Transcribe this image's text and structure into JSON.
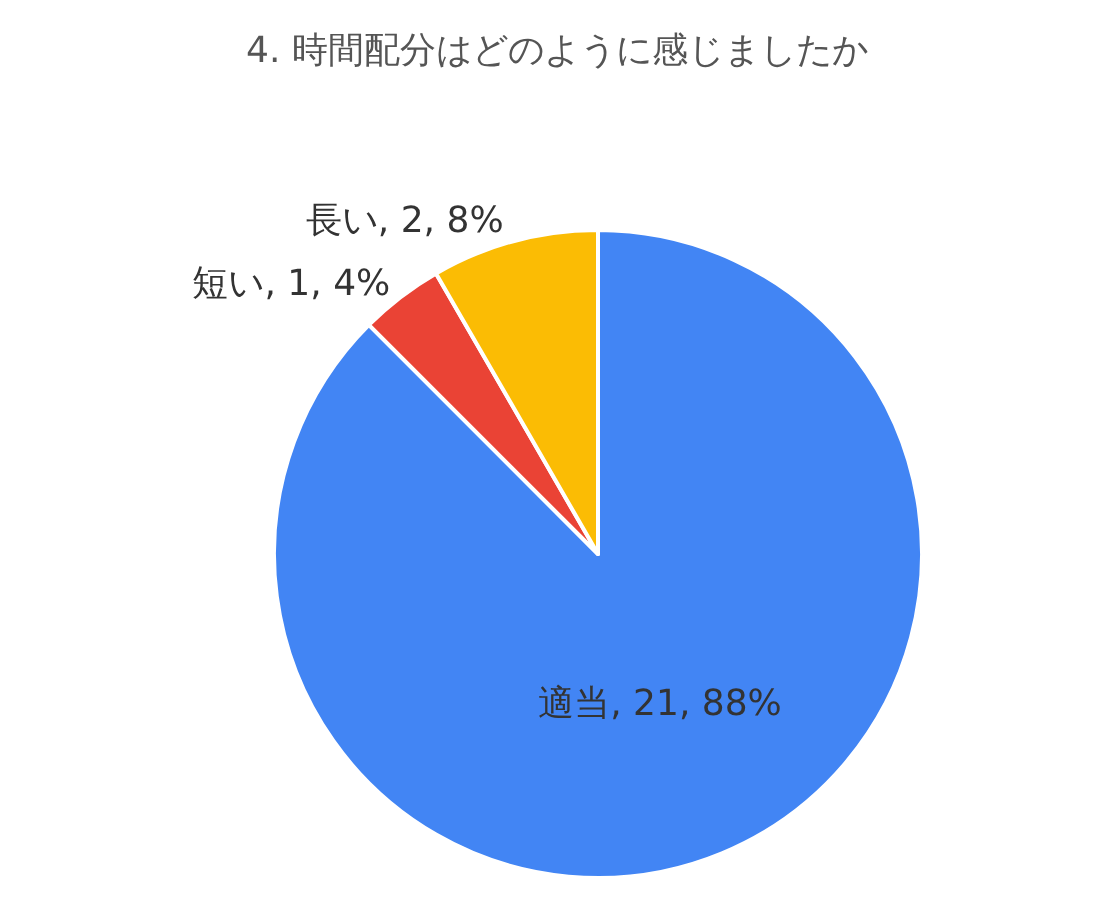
{
  "chart_data": {
    "type": "pie",
    "title": "4. 時間配分はどのように感じましたか",
    "categories": [
      "適当",
      "短い",
      "長い"
    ],
    "values": [
      21,
      1,
      2
    ],
    "colors": [
      "#4285f4",
      "#ea4335",
      "#fbbc04"
    ],
    "value_labels": [
      "21, 88%",
      "1, 4%",
      "2, 8%"
    ],
    "legend": false
  }
}
